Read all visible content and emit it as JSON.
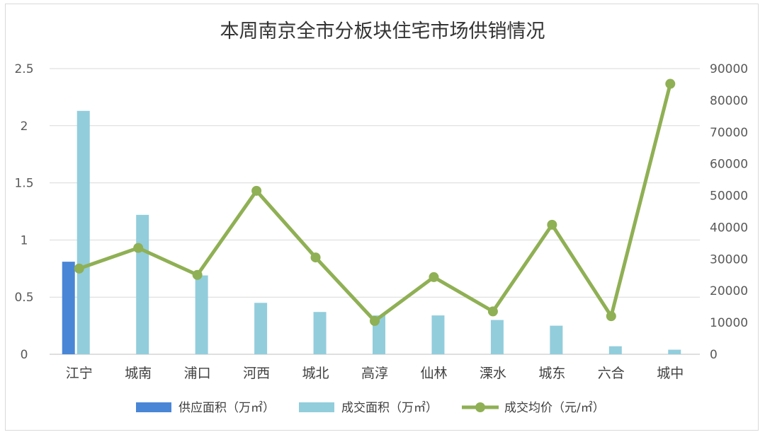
{
  "chart_data": {
    "type": "bar",
    "title": "本周南京全市分板块住宅市场供销情况",
    "categories": [
      "江宁",
      "城南",
      "浦口",
      "河西",
      "城北",
      "高淳",
      "仙林",
      "溧水",
      "城东",
      "六合",
      "城中"
    ],
    "series": [
      {
        "name": "供应面积（万㎡）",
        "type": "bar",
        "axis": "left",
        "color": "#4a86d6",
        "values": [
          0.81,
          0,
          0,
          0,
          0,
          0,
          0,
          0,
          0,
          0,
          0
        ]
      },
      {
        "name": "成交面积（万㎡）",
        "type": "bar",
        "axis": "left",
        "color": "#92cddc",
        "values": [
          2.13,
          1.22,
          0.69,
          0.45,
          0.37,
          0.34,
          0.34,
          0.3,
          0.25,
          0.07,
          0.04
        ]
      },
      {
        "name": "成交均价（元/㎡）",
        "type": "line",
        "axis": "right",
        "color": "#8fb054",
        "values": [
          27000,
          33500,
          25000,
          51500,
          30500,
          10500,
          24300,
          13500,
          40800,
          12000,
          85200
        ]
      }
    ],
    "y_left": {
      "min": 0,
      "max": 2.5,
      "ticks": [
        "0",
        "0.5",
        "1",
        "1.5",
        "2",
        "2.5"
      ]
    },
    "y_right": {
      "min": 0,
      "max": 90000,
      "ticks": [
        "0",
        "10000",
        "20000",
        "30000",
        "40000",
        "50000",
        "60000",
        "70000",
        "80000",
        "90000"
      ]
    },
    "grid": true,
    "legend_position": "bottom"
  }
}
